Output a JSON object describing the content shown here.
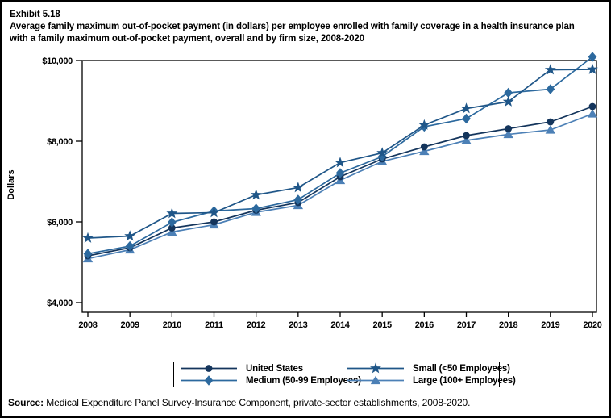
{
  "page": {
    "exhibit_label": "Exhibit 5.18",
    "title": "Average family maximum out-of-pocket payment (in dollars) per employee enrolled with family coverage in a health insurance plan with a family maximum out-of-pocket payment, overall and by firm size, 2008-2020",
    "source_label": "Source:",
    "source_text": " Medical Expenditure Panel Survey-Insurance Component, private-sector establishments, 2008-2020."
  },
  "chart_data": {
    "type": "line",
    "title": "Average family maximum out-of-pocket payment (in dollars) per employee enrolled with family coverage in a health insurance plan with a family maximum out-of-pocket payment, overall and by firm size, 2008-2020",
    "xlabel": "",
    "ylabel": "Dollars",
    "ylim": [
      4000,
      10000
    ],
    "grid": false,
    "legend_position": "bottom-center",
    "x": [
      2008,
      2009,
      2010,
      2011,
      2012,
      2013,
      2014,
      2015,
      2016,
      2017,
      2018,
      2019,
      2020
    ],
    "yticks": [
      {
        "value": 4000,
        "label": "$4,000"
      },
      {
        "value": 6000,
        "label": "$6,000"
      },
      {
        "value": 8000,
        "label": "$8,000"
      },
      {
        "value": 10000,
        "label": "$10,000"
      }
    ],
    "series": [
      {
        "name": "United States",
        "marker": "circle",
        "color": "#14355C",
        "values": [
          5160,
          5360,
          5850,
          6000,
          6290,
          6480,
          7120,
          7560,
          7860,
          8140,
          8310,
          8480,
          8860
        ]
      },
      {
        "name": "Small (<50 Employees)",
        "marker": "star",
        "color": "#1F5688",
        "values": [
          5600,
          5650,
          6210,
          6230,
          6670,
          6850,
          7470,
          7710,
          8400,
          8810,
          8980,
          9770,
          9780
        ]
      },
      {
        "name": "Medium (50-99 Employees)",
        "marker": "diamond",
        "color": "#2C699E",
        "values": [
          5210,
          5400,
          5990,
          6270,
          6330,
          6550,
          7210,
          7620,
          8360,
          8560,
          9200,
          9290,
          10090
        ]
      },
      {
        "name": "Large (100+ Employees)",
        "marker": "triangle",
        "color": "#4C80B6",
        "values": [
          5090,
          5310,
          5750,
          5930,
          6240,
          6410,
          7030,
          7500,
          7750,
          8020,
          8170,
          8280,
          8680
        ]
      }
    ],
    "draw_order": [
      3,
      0,
      2,
      1
    ]
  }
}
